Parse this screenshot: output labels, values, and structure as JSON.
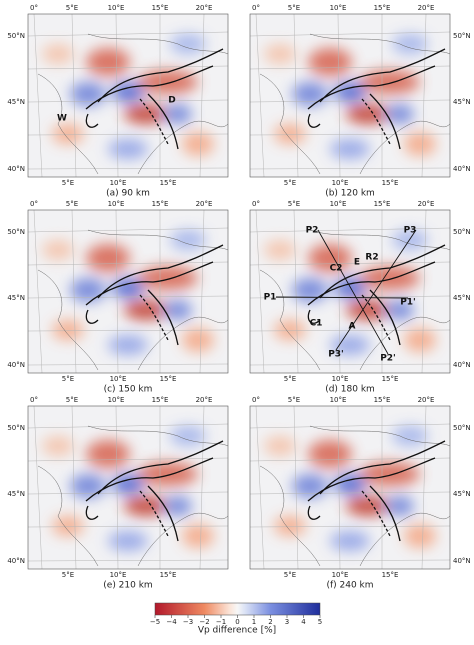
{
  "panels": [
    {
      "caption": "(a) 90 km",
      "annotations": [
        "W",
        "D"
      ]
    },
    {
      "caption": "(b) 120 km",
      "annotations": []
    },
    {
      "caption": "(c) 150 km",
      "annotations": []
    },
    {
      "caption": "(d) 180 km",
      "annotations": [
        "P2",
        "P3",
        "C2",
        "E",
        "R2",
        "P1",
        "P1'",
        "C1",
        "A",
        "P3'",
        "P2'"
      ]
    },
    {
      "caption": "(e) 210 km",
      "annotations": []
    },
    {
      "caption": "(f) 240 km",
      "annotations": []
    }
  ],
  "axes": {
    "top_labels": [
      "0°",
      "5°E",
      "10°E",
      "15°E",
      "20°E"
    ],
    "bottom_labels": [
      "5°E",
      "10°E",
      "15°E"
    ],
    "lat_labels": [
      "50°N",
      "45°N",
      "40°N"
    ]
  },
  "colorbar": {
    "label": "Vp difference [%]",
    "lim": [
      -5,
      5
    ],
    "ticks": [
      {
        "value": -5,
        "label": "−5"
      },
      {
        "value": -4,
        "label": "−4"
      },
      {
        "value": -3,
        "label": "−3"
      },
      {
        "value": -2,
        "label": "−2"
      },
      {
        "value": -1,
        "label": "−1"
      },
      0,
      1,
      2,
      3,
      4,
      5
    ]
  }
}
